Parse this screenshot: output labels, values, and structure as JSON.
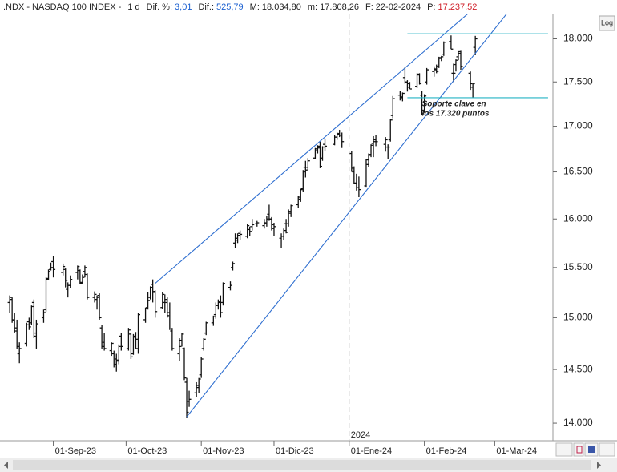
{
  "chart_data": {
    "type": "ohlc",
    "header": {
      "symbol": ".NDX - NASDAQ 100 INDEX -",
      "period": "1 d",
      "fields": [
        {
          "label": "Dif. %:",
          "value": "3,01",
          "color": "#1a5fd0"
        },
        {
          "label": "Dif.:",
          "value": "525,79",
          "color": "#1a5fd0"
        },
        {
          "label": "M:",
          "value": "18.034,80",
          "color": "#222222"
        },
        {
          "label": "m:",
          "value": "17.808,26",
          "color": "#222222"
        },
        {
          "label": "F:",
          "value": "22-02-2024",
          "color": "#222222"
        },
        {
          "label": "P:",
          "value": "17.237,52",
          "color": "#d0202a"
        }
      ]
    },
    "log_button": "Log",
    "log_scale": true,
    "color": "#111111",
    "x": [
      "2023-08-14",
      "2023-08-15",
      "2023-08-16",
      "2023-08-17",
      "2023-08-18",
      "2023-08-21",
      "2023-08-22",
      "2023-08-23",
      "2023-08-24",
      "2023-08-25",
      "2023-08-28",
      "2023-08-29",
      "2023-08-30",
      "2023-08-31",
      "2023-09-01",
      "2023-09-05",
      "2023-09-06",
      "2023-09-07",
      "2023-09-08",
      "2023-09-11",
      "2023-09-12",
      "2023-09-13",
      "2023-09-14",
      "2023-09-15",
      "2023-09-18",
      "2023-09-19",
      "2023-09-20",
      "2023-09-21",
      "2023-09-22",
      "2023-09-25",
      "2023-09-26",
      "2023-09-27",
      "2023-09-28",
      "2023-09-29",
      "2023-10-02",
      "2023-10-03",
      "2023-10-04",
      "2023-10-05",
      "2023-10-06",
      "2023-10-09",
      "2023-10-10",
      "2023-10-11",
      "2023-10-12",
      "2023-10-13",
      "2023-10-16",
      "2023-10-17",
      "2023-10-18",
      "2023-10-19",
      "2023-10-20",
      "2023-10-23",
      "2023-10-24",
      "2023-10-25",
      "2023-10-26",
      "2023-10-27",
      "2023-10-30",
      "2023-10-31",
      "2023-11-01",
      "2023-11-02",
      "2023-11-03",
      "2023-11-06",
      "2023-11-07",
      "2023-11-08",
      "2023-11-09",
      "2023-11-10",
      "2023-11-13",
      "2023-11-14",
      "2023-11-15",
      "2023-11-16",
      "2023-11-17",
      "2023-11-20",
      "2023-11-21",
      "2023-11-22",
      "2023-11-24",
      "2023-11-27",
      "2023-11-28",
      "2023-11-29",
      "2023-11-30",
      "2023-12-01",
      "2023-12-04",
      "2023-12-05",
      "2023-12-06",
      "2023-12-07",
      "2023-12-08",
      "2023-12-11",
      "2023-12-12",
      "2023-12-13",
      "2023-12-14",
      "2023-12-15",
      "2023-12-18",
      "2023-12-19",
      "2023-12-20",
      "2023-12-21",
      "2023-12-22",
      "2023-12-26",
      "2023-12-27",
      "2023-12-28",
      "2023-12-29",
      "2024-01-02",
      "2024-01-03",
      "2024-01-04",
      "2024-01-05",
      "2024-01-08",
      "2024-01-09",
      "2024-01-10",
      "2024-01-11",
      "2024-01-12",
      "2024-01-16",
      "2024-01-17",
      "2024-01-18",
      "2024-01-19",
      "2024-01-22",
      "2024-01-23",
      "2024-01-24",
      "2024-01-25",
      "2024-01-26",
      "2024-01-29",
      "2024-01-30",
      "2024-01-31",
      "2024-02-01",
      "2024-02-02",
      "2024-02-05",
      "2024-02-06",
      "2024-02-07",
      "2024-02-08",
      "2024-02-09",
      "2024-02-12",
      "2024-02-13",
      "2024-02-14",
      "2024-02-15",
      "2024-02-16",
      "2024-02-20",
      "2024-02-21",
      "2024-02-22"
    ],
    "ohlc": [
      [
        15150,
        15220,
        15050,
        15200
      ],
      [
        15180,
        15200,
        14950,
        14980
      ],
      [
        14970,
        15050,
        14850,
        14870
      ],
      [
        14900,
        14980,
        14700,
        14720
      ],
      [
        14650,
        14760,
        14560,
        14700
      ],
      [
        14750,
        14950,
        14720,
        14930
      ],
      [
        14960,
        15000,
        14880,
        14910
      ],
      [
        14950,
        15120,
        14930,
        15110
      ],
      [
        15150,
        15180,
        14800,
        14820
      ],
      [
        14850,
        14980,
        14700,
        14940
      ],
      [
        15000,
        15080,
        14950,
        15050
      ],
      [
        15080,
        15400,
        15060,
        15380
      ],
      [
        15390,
        15480,
        15370,
        15460
      ],
      [
        15480,
        15550,
        15470,
        15500
      ],
      [
        15560,
        15620,
        15400,
        15480
      ],
      [
        15450,
        15540,
        15420,
        15510
      ],
      [
        15480,
        15490,
        15300,
        15370
      ],
      [
        15280,
        15350,
        15200,
        15320
      ],
      [
        15320,
        15420,
        15290,
        15380
      ],
      [
        15450,
        15520,
        15380,
        15510
      ],
      [
        15470,
        15480,
        15330,
        15340
      ],
      [
        15350,
        15430,
        15330,
        15400
      ],
      [
        15460,
        15520,
        15400,
        15500
      ],
      [
        15430,
        15440,
        15180,
        15200
      ],
      [
        15200,
        15260,
        15150,
        15230
      ],
      [
        15180,
        15220,
        15080,
        15200
      ],
      [
        15220,
        15240,
        14980,
        15000
      ],
      [
        14900,
        14930,
        14700,
        14720
      ],
      [
        14760,
        14850,
        14680,
        14700
      ],
      [
        14680,
        14760,
        14630,
        14750
      ],
      [
        14650,
        14680,
        14520,
        14550
      ],
      [
        14600,
        14650,
        14480,
        14590
      ],
      [
        14580,
        14740,
        14550,
        14720
      ],
      [
        14820,
        14850,
        14680,
        14720
      ],
      [
        14700,
        14900,
        14680,
        14880
      ],
      [
        14840,
        14850,
        14600,
        14620
      ],
      [
        14650,
        14840,
        14640,
        14820
      ],
      [
        14810,
        14860,
        14700,
        14790
      ],
      [
        14700,
        15050,
        14650,
        15030
      ],
      [
        14980,
        15100,
        14950,
        15090
      ],
      [
        15100,
        15250,
        15080,
        15170
      ],
      [
        15200,
        15310,
        15180,
        15300
      ],
      [
        15330,
        15380,
        15150,
        15250
      ],
      [
        15260,
        15270,
        15000,
        15060
      ],
      [
        15100,
        15250,
        15090,
        15230
      ],
      [
        15150,
        15230,
        15050,
        15180
      ],
      [
        15150,
        15200,
        15000,
        15020
      ],
      [
        15050,
        15150,
        14880,
        14890
      ],
      [
        14870,
        14900,
        14680,
        14700
      ],
      [
        14650,
        14800,
        14580,
        14720
      ],
      [
        14780,
        14850,
        14720,
        14840
      ],
      [
        14700,
        14710,
        14400,
        14420
      ],
      [
        14380,
        14420,
        14050,
        14100
      ],
      [
        14200,
        14300,
        14150,
        14220
      ],
      [
        14280,
        14380,
        14240,
        14350
      ],
      [
        14330,
        14420,
        14280,
        14410
      ],
      [
        14450,
        14620,
        14420,
        14600
      ],
      [
        14700,
        14800,
        14680,
        14790
      ],
      [
        14850,
        14960,
        14830,
        14950
      ],
      [
        14950,
        15020,
        14920,
        15010
      ],
      [
        15030,
        15150,
        14990,
        15120
      ],
      [
        15120,
        15180,
        15080,
        15150
      ],
      [
        15160,
        15220,
        15000,
        15050
      ],
      [
        15150,
        15350,
        15120,
        15340
      ],
      [
        15300,
        15360,
        15270,
        15320
      ],
      [
        15500,
        15560,
        15470,
        15540
      ],
      [
        15750,
        15850,
        15700,
        15800
      ],
      [
        15780,
        15850,
        15750,
        15830
      ],
      [
        15850,
        15880,
        15780,
        15840
      ],
      [
        15820,
        15950,
        15800,
        15930
      ],
      [
        15890,
        15920,
        15820,
        15870
      ],
      [
        15920,
        16000,
        15880,
        15940
      ],
      [
        15950,
        15980,
        15920,
        15960
      ],
      [
        15930,
        16000,
        15900,
        15960
      ],
      [
        15950,
        16030,
        15920,
        16000
      ],
      [
        16050,
        16150,
        15980,
        16000
      ],
      [
        16000,
        16020,
        15880,
        15940
      ],
      [
        15900,
        15960,
        15820,
        15920
      ],
      [
        15800,
        15850,
        15700,
        15820
      ],
      [
        15820,
        15900,
        15780,
        15880
      ],
      [
        15950,
        16000,
        15850,
        15860
      ],
      [
        15950,
        16100,
        15920,
        16080
      ],
      [
        16060,
        16150,
        16020,
        16140
      ],
      [
        16150,
        16240,
        16120,
        16230
      ],
      [
        16210,
        16320,
        16180,
        16310
      ],
      [
        16320,
        16520,
        16290,
        16500
      ],
      [
        16550,
        16620,
        16440,
        16520
      ],
      [
        16550,
        16650,
        16520,
        16620
      ],
      [
        16650,
        16760,
        16640,
        16730
      ],
      [
        16750,
        16790,
        16700,
        16760
      ],
      [
        16780,
        16830,
        16540,
        16560
      ],
      [
        16650,
        16780,
        16620,
        16770
      ],
      [
        16800,
        16860,
        16730,
        16780
      ],
      [
        16800,
        16900,
        16790,
        16880
      ],
      [
        16880,
        16930,
        16850,
        16910
      ],
      [
        16920,
        16960,
        16880,
        16900
      ],
      [
        16900,
        16930,
        16760,
        16830
      ],
      [
        16700,
        16730,
        16500,
        16540
      ],
      [
        16500,
        16560,
        16370,
        16380
      ],
      [
        16380,
        16480,
        16300,
        16330
      ],
      [
        16330,
        16450,
        16230,
        16310
      ],
      [
        16350,
        16640,
        16340,
        16630
      ],
      [
        16580,
        16700,
        16550,
        16680
      ],
      [
        16690,
        16800,
        16660,
        16790
      ],
      [
        16810,
        16890,
        16660,
        16830
      ],
      [
        16850,
        16900,
        16780,
        16830
      ],
      [
        16800,
        16880,
        16720,
        16850
      ],
      [
        16770,
        16800,
        16640,
        16770
      ],
      [
        16850,
        17080,
        16830,
        17070
      ],
      [
        17120,
        17340,
        17090,
        17310
      ],
      [
        17350,
        17400,
        17290,
        17320
      ],
      [
        17330,
        17380,
        17280,
        17370
      ],
      [
        17550,
        17670,
        17480,
        17500
      ],
      [
        17500,
        17520,
        17390,
        17480
      ],
      [
        17440,
        17500,
        17420,
        17420
      ],
      [
        17450,
        17600,
        17430,
        17590
      ],
      [
        17580,
        17600,
        17470,
        17480
      ],
      [
        17350,
        17400,
        17130,
        17140
      ],
      [
        17180,
        17360,
        17150,
        17340
      ],
      [
        17500,
        17660,
        17470,
        17640
      ],
      [
        17620,
        17680,
        17560,
        17650
      ],
      [
        17640,
        17700,
        17600,
        17620
      ],
      [
        17680,
        17790,
        17660,
        17770
      ],
      [
        17780,
        17800,
        17740,
        17790
      ],
      [
        17820,
        17970,
        17800,
        17960
      ],
      [
        17970,
        18040,
        17880,
        17880
      ],
      [
        17600,
        17710,
        17500,
        17600
      ],
      [
        17700,
        17760,
        17620,
        17750
      ],
      [
        17790,
        17850,
        17750,
        17850
      ],
      [
        17830,
        17860,
        17640,
        17680
      ],
      [
        17600,
        17620,
        17410,
        17480
      ],
      [
        17440,
        17480,
        17320,
        17480
      ],
      [
        17900,
        18034.8,
        17808.26,
        18000
      ]
    ],
    "xlim": [
      "2023-08-10",
      "2024-03-25"
    ],
    "xticks": [
      {
        "value": "2023-09-01",
        "label": "01-Sep-23"
      },
      {
        "value": "2023-10-01",
        "label": "01-Oct-23"
      },
      {
        "value": "2023-11-01",
        "label": "01-Nov-23"
      },
      {
        "value": "2023-12-01",
        "label": "01-Dic-23"
      },
      {
        "value": "2024-01-01",
        "label": "01-Ene-24"
      },
      {
        "value": "2024-02-01",
        "label": "01-Feb-24"
      },
      {
        "value": "2024-03-01",
        "label": "01-Mar-24"
      }
    ],
    "ylim": [
      13840,
      18290
    ],
    "yticks": [
      {
        "value": 14000,
        "label": "14.000"
      },
      {
        "value": 14500,
        "label": "14.500"
      },
      {
        "value": 15000,
        "label": "15.000"
      },
      {
        "value": 15500,
        "label": "15.500"
      },
      {
        "value": 16000,
        "label": "16.000"
      },
      {
        "value": 16500,
        "label": "16.500"
      },
      {
        "value": 17000,
        "label": "17.000"
      },
      {
        "value": 17500,
        "label": "17.500"
      },
      {
        "value": 18000,
        "label": "18.000"
      }
    ],
    "year_marker": {
      "date": "2024-01-01",
      "label": "2024"
    },
    "trend_lines": [
      {
        "from": [
          "2023-10-13",
          15340
        ],
        "to": [
          "2024-02-19",
          18300
        ],
        "color": "#2f6fd0"
      },
      {
        "from": [
          "2023-10-26",
          14058
        ],
        "to": [
          "2024-03-06",
          18300
        ],
        "color": "#2f6fd0"
      }
    ],
    "hlines": [
      {
        "value": 18060,
        "from": "2024-01-25",
        "to": "2024-03-23",
        "color": "#25b3c4"
      },
      {
        "value": 17320,
        "from": "2024-01-25",
        "to": "2024-03-23",
        "color": "#25b3c4"
      }
    ],
    "annotation": {
      "lines": [
        "Soporte clave en",
        "los 17.320 puntos"
      ],
      "date": "2024-01-31",
      "value": 17250
    }
  }
}
